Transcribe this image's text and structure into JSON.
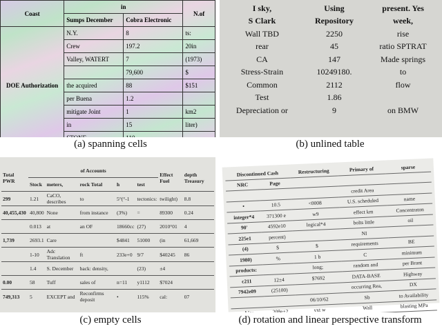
{
  "panel_a": {
    "caption": "(a) spanning cells",
    "header": {
      "coast": "Coast",
      "in": "in",
      "nof": "N.of",
      "sumps": "Sumps December",
      "cobra": "Cobra Electronic"
    },
    "row_label": "DOE Authorization",
    "rows": [
      [
        "N.Y.",
        "8",
        "ts:"
      ],
      [
        "Crew",
        "197.2",
        "20in"
      ],
      [
        "Valley, WATERT",
        "7",
        "(1973)"
      ],
      [
        "",
        "79,600",
        "$"
      ],
      [
        "the acquired",
        "88",
        "$151"
      ],
      [
        "per Buena",
        "1.2",
        ""
      ],
      [
        "mitigate Joint",
        "1",
        "km2"
      ],
      [
        "in",
        "15",
        "liter)"
      ],
      [
        "STONE",
        "110",
        ""
      ]
    ]
  },
  "panel_b": {
    "caption": "(b) unlined table",
    "header1": [
      "I sky,",
      "Using",
      "present. Yes"
    ],
    "header2": [
      "S Clark",
      "Repository",
      "week,"
    ],
    "rows": [
      [
        "Wall TBD",
        "2250",
        "rise"
      ],
      [
        "rear",
        "45",
        "ratio SPTRAT"
      ],
      [
        "CA",
        "147",
        "Made springs"
      ],
      [
        "Stress-Strain",
        "10249180.",
        "to"
      ],
      [
        "Common",
        "2112",
        "flow"
      ],
      [
        "Test",
        "1.86",
        ""
      ],
      [
        "Depreciation or",
        "9",
        "on BMW"
      ]
    ]
  },
  "panel_c": {
    "caption": "(c) empty cells",
    "header": {
      "total_pwr": "Total PWR",
      "of_accounts": "of Accounts",
      "effect_fuel": "Effect Fuel",
      "depth": "depth Treasury",
      "stock": "Stock",
      "meters": "meters,",
      "rock_total": "rock Total",
      "h": "h",
      "test": "test"
    },
    "rows": [
      [
        "299",
        "1.21",
        "CaCO, describes",
        "to",
        "5°(°-1",
        "tectonics:",
        "twilight)",
        "8.8"
      ],
      [
        "40,455,430",
        "40,800",
        "None",
        "from instance",
        "(3%)",
        "=",
        "89300",
        "0.24"
      ],
      [
        "",
        "0.013",
        "at",
        "an OF",
        "18660cc",
        "(27)",
        "2010°01",
        "4"
      ],
      [
        "1,739",
        "2693.1",
        "Care",
        "",
        "$4841",
        "51000",
        "(in",
        "61,669"
      ],
      [
        "",
        "1-10",
        "Adc Translation",
        "ft",
        "233e+0",
        "9/7",
        "$40245",
        "86"
      ],
      [
        "",
        "1.4",
        "S. December",
        "back: density,",
        "",
        "(23)",
        "±4",
        ""
      ],
      [
        "0.00",
        "58",
        "Tuff",
        "sales of",
        "n=11",
        "y1112",
        "$7024",
        ""
      ],
      [
        "749,313",
        "5",
        "EXCEPT and",
        "Reconfirms deposit",
        "•",
        "115%",
        "cal:",
        "07"
      ]
    ]
  },
  "panel_d": {
    "caption": "(d) rotation and linear perspective transform",
    "header": [
      "Discontinued Cash",
      "Restructuring",
      "Primary of",
      "sparse"
    ],
    "subheader": [
      "NRC",
      "Page"
    ],
    "rows": [
      [
        "",
        "",
        "",
        "credit Area",
        ""
      ],
      [
        "•",
        "10.5",
        "<0008",
        "U.S. scheduled",
        "name"
      ],
      [
        "integer*4",
        "371300 e",
        "w9",
        "effect km",
        "Concentraton"
      ],
      [
        "90'",
        "4592e10",
        "logical*4",
        "bolts little",
        "oil"
      ],
      [
        "225e1",
        "percent)",
        "",
        "NI",
        ""
      ],
      [
        "(4)",
        "$",
        "$",
        "requirements",
        "BE"
      ],
      [
        "1980)",
        "%",
        "1 b",
        "C",
        "minimum"
      ],
      [
        "products:",
        "",
        "long;",
        "random and",
        "per Brant"
      ],
      [
        "c211",
        "12±4",
        "$7692",
        "DATA-BASE",
        "Highway"
      ],
      [
        "7942e09",
        "(25100)",
        "",
        "occurring Rea,",
        "DX"
      ],
      [
        "",
        "",
        "06/10/62",
        "Sb",
        "to Availability"
      ],
      [
        "ohio;",
        "208e+2",
        "vxt w",
        "Wall",
        "blasting MPa"
      ],
      [
        "ml/g",
        "$",
        "c744",
        "",
        ""
      ]
    ]
  },
  "colors": {
    "rainbow_bg": "#d7c9e6",
    "photo_bg": "#d6d6d2",
    "scan_bg": "#e2e2de",
    "rotated_bg": "#ebebe8"
  }
}
